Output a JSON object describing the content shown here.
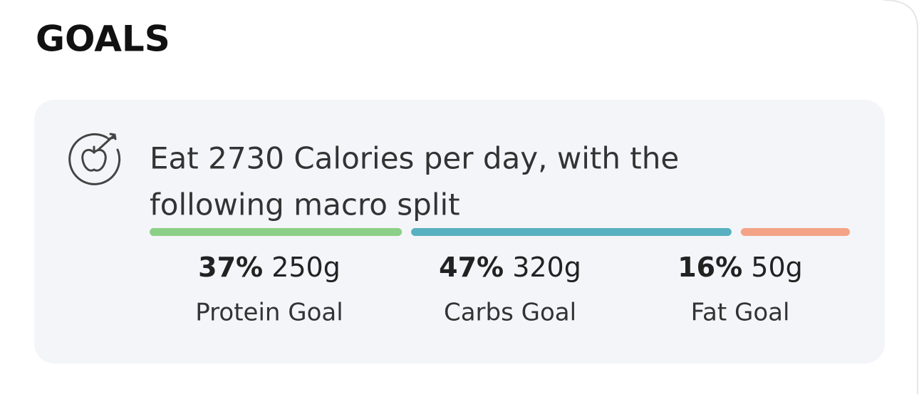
{
  "header": {
    "title": "GOALS"
  },
  "goal": {
    "line1": "Eat 2730 Calories per day, with the",
    "line2": "following macro split"
  },
  "macros": {
    "values": [
      37,
      47,
      16
    ],
    "value_labels": [
      "37%",
      "47%",
      "16%"
    ],
    "amounts": [
      "250g",
      "320g",
      "50g"
    ],
    "names": [
      "Protein Goal",
      "Carbs Goal",
      "Fat Goal"
    ],
    "colors": [
      "#8ccf86",
      "#58b0c0",
      "#f4a386"
    ]
  }
}
